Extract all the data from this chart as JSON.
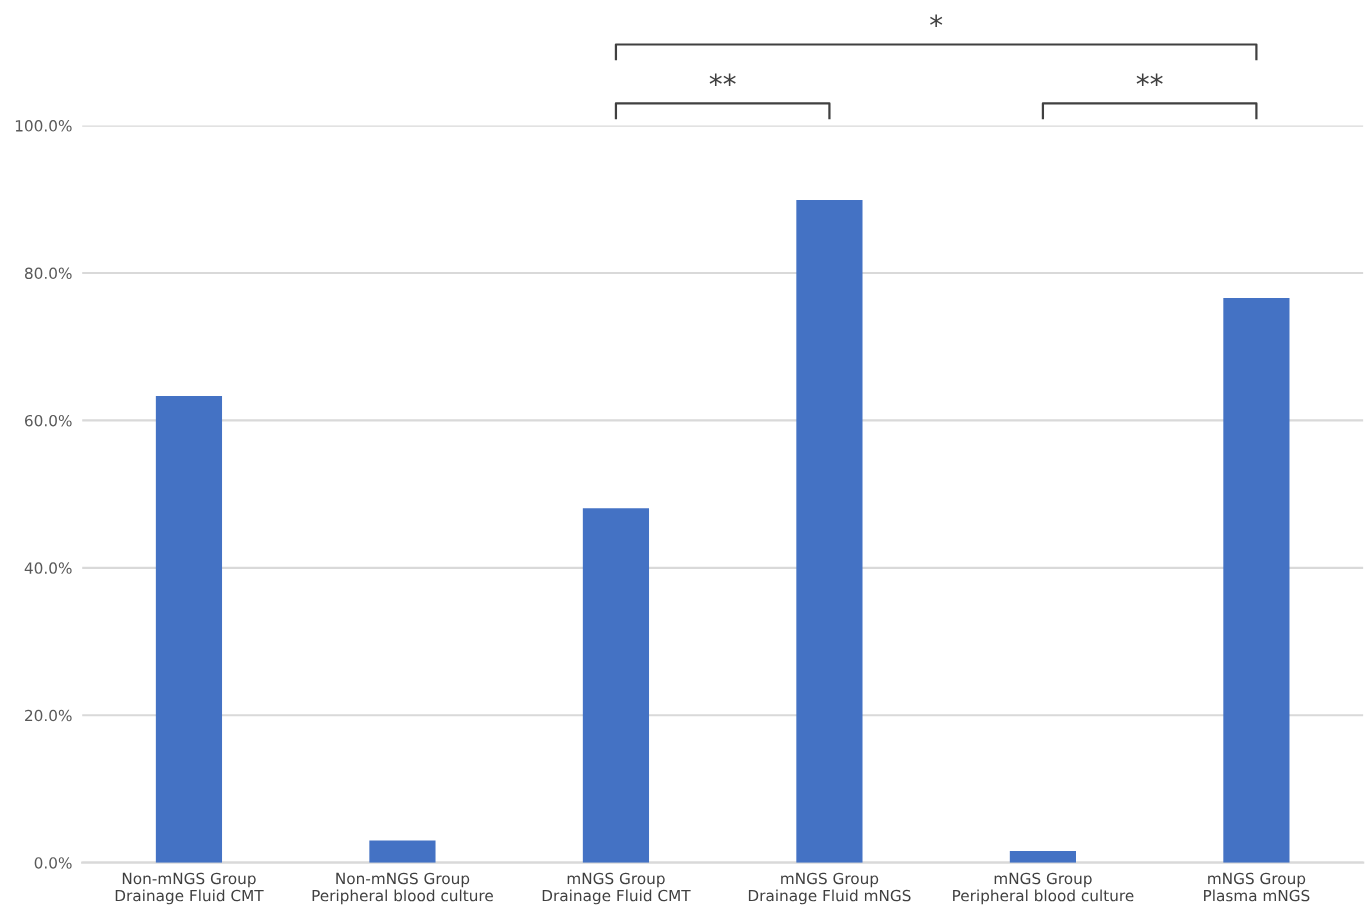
{
  "chart_data": {
    "type": "bar",
    "categories": [
      "Non-mNGS Group\nDrainage Fluid CMT",
      "Non-mNGS Group\nPeripheral blood culture",
      "mNGS Group\nDrainage Fluid CMT",
      "mNGS Group\nDrainage Fluid mNGS",
      "mNGS Group\nPeripheral blood culture",
      "mNGS Group\nPlasma mNGS"
    ],
    "values": [
      63.3,
      3.0,
      48.1,
      89.9,
      1.6,
      76.6
    ],
    "color": "#4472c4",
    "ylim": [
      0,
      100
    ],
    "yticks": [
      {
        "value": 0,
        "label": "0.0%"
      },
      {
        "value": 20,
        "label": "20.0%"
      },
      {
        "value": 40,
        "label": "40.0%"
      },
      {
        "value": 60,
        "label": "60.0%"
      },
      {
        "value": 80,
        "label": "80.0%"
      },
      {
        "value": 100,
        "label": "100.0%"
      }
    ],
    "grid": "y",
    "annotations": [
      "**",
      "**",
      "*"
    ]
  }
}
